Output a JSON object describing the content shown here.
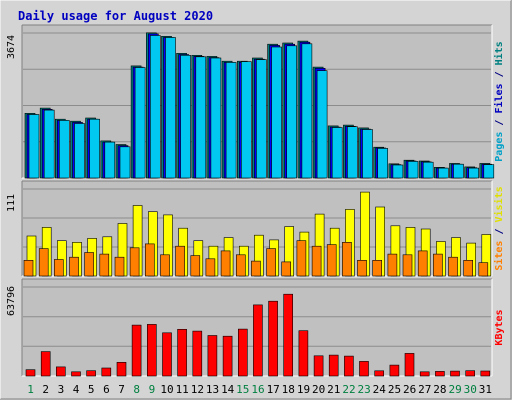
{
  "chart_data": {
    "title": "Daily usage for August 2020",
    "type": "bar",
    "categories": [
      "1",
      "2",
      "3",
      "4",
      "5",
      "6",
      "7",
      "8",
      "9",
      "10",
      "11",
      "12",
      "13",
      "14",
      "15",
      "16",
      "17",
      "18",
      "19",
      "20",
      "21",
      "22",
      "23",
      "24",
      "25",
      "26",
      "27",
      "28",
      "29",
      "30",
      "31"
    ],
    "weekend_days": [
      1,
      8,
      9,
      15,
      16,
      22,
      23,
      29,
      30
    ],
    "panels": [
      {
        "id": "hits",
        "ymax": 3674,
        "ymax_label": "3674",
        "right_label": [
          {
            "text": "Pages",
            "color": "#00a0c8"
          },
          {
            "text": " / ",
            "color": "#000080"
          },
          {
            "text": "Files",
            "color": "#0000c0"
          },
          {
            "text": " / ",
            "color": "#000080"
          },
          {
            "text": "Hits",
            "color": "#008080"
          }
        ],
        "series": [
          {
            "name": "Hits",
            "color": "#008080",
            "values": [
              1640,
              1770,
              1490,
              1440,
              1520,
              940,
              850,
              2840,
              3680,
              3590,
              3160,
              3110,
              3080,
              2960,
              2960,
              3040,
              3390,
              3420,
              3470,
              2810,
              1320,
              1340,
              1270,
              780,
              360,
              450,
              430,
              270,
              370,
              280,
              370
            ]
          },
          {
            "name": "Files",
            "color": "#0000ff",
            "values": [
              1610,
              1740,
              1460,
              1410,
              1490,
              910,
              820,
              2810,
              3650,
              3560,
              3130,
              3080,
              3050,
              2930,
              2930,
              3010,
              3360,
              3390,
              3440,
              2780,
              1290,
              1310,
              1240,
              760,
              340,
              430,
              410,
              250,
              350,
              260,
              350
            ]
          },
          {
            "name": "Pages",
            "color": "#00c8f0",
            "values": [
              1610,
              1720,
              1460,
              1380,
              1490,
              910,
              790,
              2800,
              3610,
              3560,
              3110,
              3070,
              3040,
              2930,
              2950,
              3000,
              3320,
              3350,
              3400,
              2720,
              1280,
              1300,
              1230,
              750,
              330,
              420,
              400,
              250,
              350,
              250,
              340
            ]
          }
        ]
      },
      {
        "id": "visits",
        "ymax": 111,
        "ymax_label": "111",
        "right_label": [
          {
            "text": "Sites",
            "color": "#ff8000"
          },
          {
            "text": " / ",
            "color": "#000080"
          },
          {
            "text": "Visits",
            "color": "#e0e000"
          }
        ],
        "series": [
          {
            "name": "Visits",
            "color": "#ffff00",
            "values": [
              51,
              62,
              45,
              43,
              48,
              50,
              67,
              90,
              82,
              78,
              61,
              45,
              38,
              49,
              38,
              52,
              46,
              63,
              56,
              79,
              61,
              85,
              107,
              88,
              64,
              62,
              60,
              44,
              49,
              42,
              53
            ]
          },
          {
            "name": "Sites",
            "color": "#ff8000",
            "values": [
              20,
              35,
              21,
              24,
              30,
              28,
              24,
              36,
              41,
              27,
              38,
              26,
              22,
              32,
              27,
              19,
              35,
              18,
              45,
              38,
              40,
              43,
              20,
              20,
              28,
              27,
              32,
              28,
              24,
              20,
              17
            ]
          }
        ]
      },
      {
        "id": "kbytes",
        "ymax": 63796,
        "ymax_label": "63796",
        "right_label": [
          {
            "text": "KBytes",
            "color": "#ff0000"
          }
        ],
        "series": [
          {
            "name": "KBytes",
            "color": "#ff0000",
            "values": [
              4500,
              17500,
              6500,
              3000,
              3800,
              5700,
              9800,
              36500,
              37000,
              31000,
              33500,
              32200,
              29000,
              28500,
              33600,
              51000,
              53600,
              58600,
              32500,
              14500,
              15000,
              14300,
              10500,
              3700,
              7800,
              16200,
              3000,
              3300,
              3500,
              3800,
              3600
            ]
          }
        ]
      }
    ]
  }
}
